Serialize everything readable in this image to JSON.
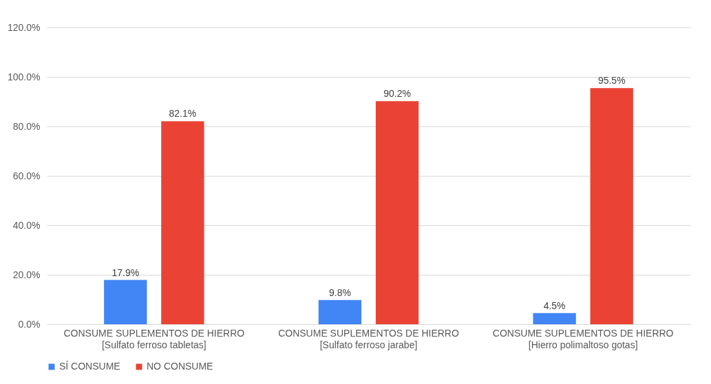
{
  "chart_data": {
    "type": "bar",
    "categories": [
      "CONSUME SUPLEMENTOS DE HIERRO\n[Sulfato ferroso tabletas]",
      "CONSUME SUPLEMENTOS DE HIERRO\n[Sulfato ferroso jarabe]",
      "CONSUME SUPLEMENTOS DE HIERRO\n[Hierro polimaltoso gotas]"
    ],
    "series": [
      {
        "name": "SÍ CONSUME",
        "color": "#4285f4",
        "values": [
          17.9,
          9.8,
          4.5
        ],
        "value_labels": [
          "17.9%",
          "9.8%",
          "4.5%"
        ]
      },
      {
        "name": "NO CONSUME",
        "color": "#ea4335",
        "values": [
          82.1,
          90.2,
          95.5
        ],
        "value_labels": [
          "82.1%",
          "90.2%",
          "95.5%"
        ]
      }
    ],
    "ylim": [
      0,
      120
    ],
    "yticks": [
      {
        "value": 0,
        "label": "0.0%"
      },
      {
        "value": 20,
        "label": "20.0%"
      },
      {
        "value": 40,
        "label": "40.0%"
      },
      {
        "value": 60,
        "label": "60.0%"
      },
      {
        "value": 80,
        "label": "80.0%"
      },
      {
        "value": 100,
        "label": "100.0%"
      },
      {
        "value": 120,
        "label": "120.0%"
      }
    ],
    "grid": "y",
    "legend": "bottom"
  }
}
